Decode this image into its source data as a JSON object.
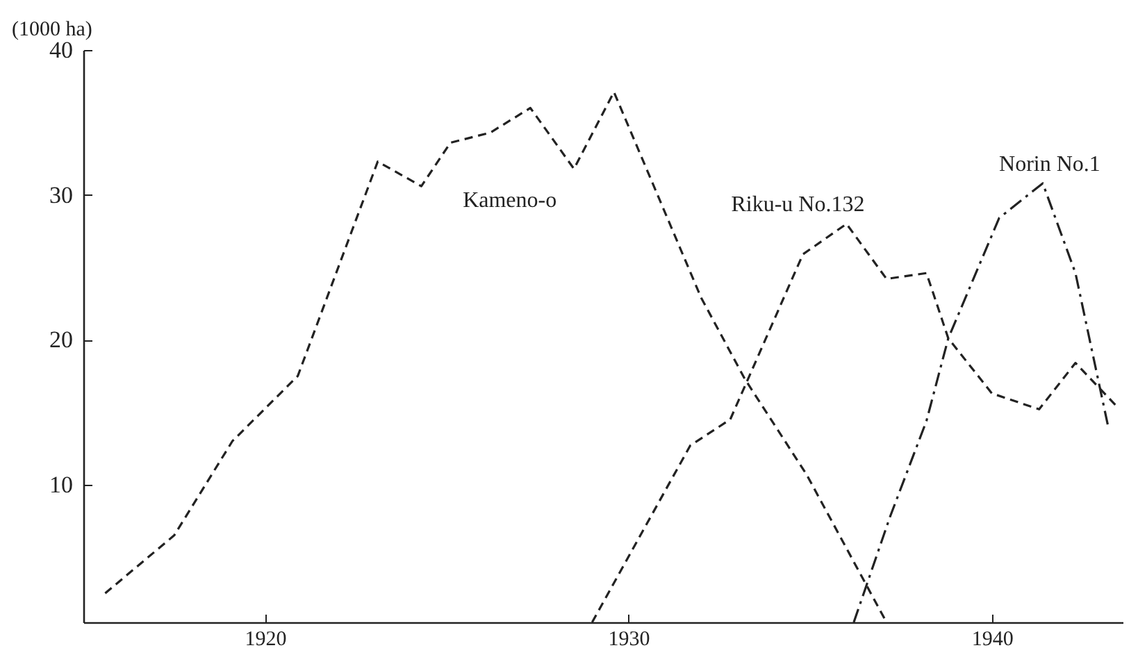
{
  "chart_data": {
    "type": "line",
    "ylabel": "(1000 ha)",
    "xlim": [
      1915,
      1943.6
    ],
    "ylim": [
      0.5,
      40
    ],
    "xticks": [
      1920,
      1930,
      1940
    ],
    "yticks": [
      10,
      20,
      30,
      40
    ],
    "grid": false,
    "marker": "none",
    "series": [
      {
        "name": "Kameno-o",
        "color": "#222222",
        "line_style": "dashed",
        "x": [
          1915.6,
          1917.5,
          1919.1,
          1920.9,
          1923.1,
          1924.3,
          1925.1,
          1926.2,
          1927.3,
          1928.5,
          1929.6,
          1932,
          1933.2,
          1934.9,
          1937.1
        ],
        "values": [
          2.5,
          6.5,
          13,
          17.5,
          32.3,
          30.6,
          33.6,
          34.3,
          36,
          31.8,
          37.1,
          22.9,
          17.3,
          10.7,
          0.5
        ]
      },
      {
        "name": "Riku-u No.132",
        "color": "#222222",
        "line_style": "dashed",
        "x": [
          1929,
          1931.7,
          1932.8,
          1934.8,
          1936,
          1937.1,
          1938.2,
          1938.8,
          1940,
          1941.3,
          1942.3,
          1943.4
        ],
        "values": [
          0.5,
          12.7,
          14.5,
          25.9,
          28,
          24.2,
          24.6,
          20.1,
          16.3,
          15.2,
          18.4,
          15.5
        ]
      },
      {
        "name": "Norin No.1",
        "color": "#222222",
        "line_style": "dashdot",
        "x": [
          1936.2,
          1937.2,
          1938.2,
          1938.8,
          1940.2,
          1941.4,
          1942.3,
          1943.2
        ],
        "values": [
          0.5,
          7.8,
          14.4,
          20.1,
          28.4,
          30.8,
          24.6,
          14
        ]
      }
    ]
  }
}
